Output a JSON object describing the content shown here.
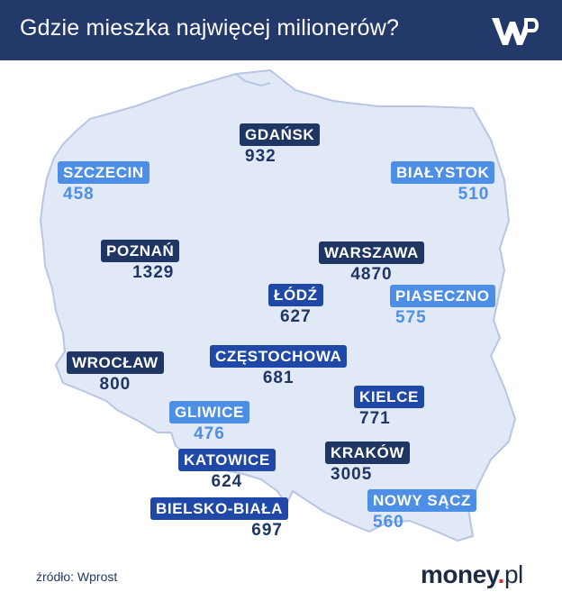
{
  "header": {
    "title": "Gdzie mieszka najwięcej milionerów?",
    "logo_text": "WP"
  },
  "colors": {
    "header_bg": "#233969",
    "map_fill": "#e1e8f6",
    "map_stroke": "#b8c6e4",
    "badge_dark": "#1f3564",
    "badge_mid": "#1f48a8",
    "badge_light": "#4d8fe6"
  },
  "cities": [
    {
      "name": "GDAŃSK",
      "value": "932",
      "style": "dark"
    },
    {
      "name": "SZCZECIN",
      "value": "458",
      "style": "light"
    },
    {
      "name": "BIAŁYSTOK",
      "value": "510",
      "style": "light"
    },
    {
      "name": "POZNAŃ",
      "value": "1329",
      "style": "dark"
    },
    {
      "name": "WARSZAWA",
      "value": "4870",
      "style": "dark"
    },
    {
      "name": "ŁÓDŹ",
      "value": "627",
      "style": "mid"
    },
    {
      "name": "PIASECZNO",
      "value": "575",
      "style": "light"
    },
    {
      "name": "WROCŁAW",
      "value": "800",
      "style": "dark"
    },
    {
      "name": "CZĘSTOCHOWA",
      "value": "681",
      "style": "mid"
    },
    {
      "name": "KIELCE",
      "value": "771",
      "style": "mid"
    },
    {
      "name": "GLIWICE",
      "value": "476",
      "style": "light"
    },
    {
      "name": "KATOWICE",
      "value": "624",
      "style": "mid"
    },
    {
      "name": "KRAKÓW",
      "value": "3005",
      "style": "dark"
    },
    {
      "name": "NOWY SĄCZ",
      "value": "560",
      "style": "light"
    },
    {
      "name": "BIELSKO-BIAŁA",
      "value": "697",
      "style": "mid"
    }
  ],
  "footer": {
    "source": "źródło: Wprost",
    "brand_main": "money",
    "brand_dot": ".",
    "brand_tld": "pl"
  }
}
